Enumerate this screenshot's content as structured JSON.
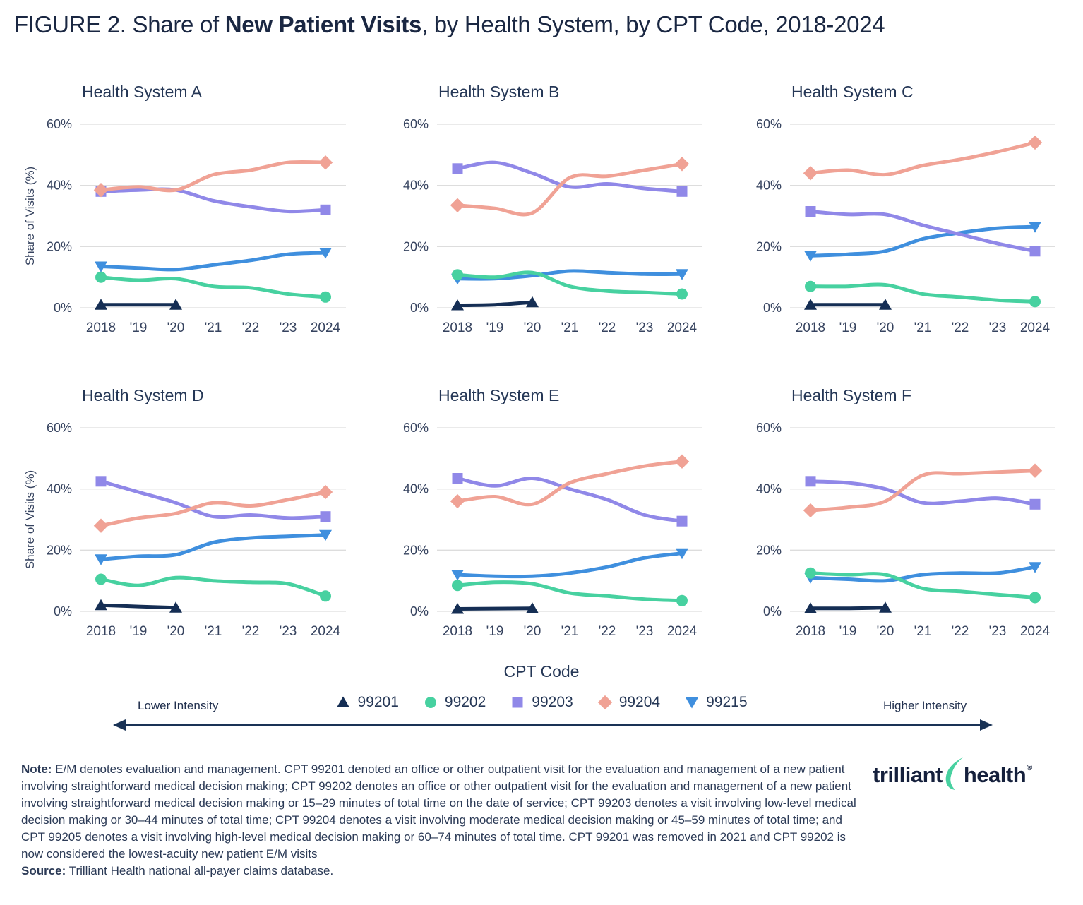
{
  "title": {
    "prefix": "FIGURE 2. Share of ",
    "bold": "New Patient Visits",
    "suffix": ", by Health System, by CPT Code, 2018-2024"
  },
  "colors": {
    "navy": "#152e54",
    "green": "#47d1a0",
    "purple": "#9088e8",
    "salmon": "#f0a295",
    "blue": "#3f8fde",
    "gridline": "#dddddd",
    "tick_text": "#36435f",
    "chart_title_text": "#253756"
  },
  "chart_data": {
    "type": "line",
    "x_years": [
      2018,
      2019,
      2020,
      2021,
      2022,
      2023,
      2024
    ],
    "x_tick_labels": [
      "2018",
      "'19",
      "'20",
      "'21",
      "'22",
      "'23",
      "2024"
    ],
    "y_tick_labels": [
      "60%",
      "40%",
      "20%",
      "0%"
    ],
    "ylim": [
      0,
      60
    ],
    "ylabel": "Share of Visits (%)",
    "grid": "horizontal-only",
    "legend_position": "bottom",
    "series_order": [
      "99201",
      "99215",
      "99202",
      "99203",
      "99204"
    ],
    "series_styles": {
      "99201": {
        "color_key": "navy",
        "marker": "triangle-up",
        "note": "only 2018-2020"
      },
      "99202": {
        "color_key": "green",
        "marker": "circle"
      },
      "99203": {
        "color_key": "purple",
        "marker": "square"
      },
      "99204": {
        "color_key": "salmon",
        "marker": "diamond"
      },
      "99215": {
        "color_key": "blue",
        "marker": "triangle-down"
      }
    },
    "charts": [
      {
        "title": "Health System A",
        "series": {
          "99201": [
            1,
            1,
            1
          ],
          "99202": [
            10,
            9,
            9.5,
            7,
            6.5,
            4.5,
            3.5
          ],
          "99203": [
            38,
            38.5,
            38.5,
            35,
            33,
            31.5,
            32
          ],
          "99204": [
            38.5,
            39.5,
            38.5,
            43.5,
            45,
            47.5,
            47.5
          ],
          "99215": [
            13.5,
            13,
            12.5,
            14,
            15.5,
            17.5,
            18
          ]
        }
      },
      {
        "title": "Health System B",
        "series": {
          "99201": [
            0.8,
            1,
            1.8
          ],
          "99202": [
            10.8,
            10,
            11.5,
            7,
            5.5,
            5,
            4.5
          ],
          "99203": [
            45.5,
            47.5,
            44,
            39.5,
            40.5,
            39,
            38
          ],
          "99204": [
            33.5,
            32.5,
            31,
            42.5,
            43,
            45,
            47
          ],
          "99215": [
            9.5,
            9.5,
            10.5,
            12,
            11.5,
            11,
            11
          ]
        }
      },
      {
        "title": "Health System C",
        "series": {
          "99201": [
            1,
            1,
            1
          ],
          "99202": [
            7,
            7,
            7.5,
            4.5,
            3.5,
            2.5,
            2
          ],
          "99203": [
            31.5,
            30.5,
            30.5,
            27,
            24,
            21,
            18.5
          ],
          "99204": [
            44,
            45,
            43.5,
            46.5,
            48.5,
            51,
            54
          ],
          "99215": [
            17,
            17.5,
            18.5,
            22.5,
            24.5,
            26,
            26.5
          ]
        }
      },
      {
        "title": "Health System D",
        "series": {
          "99201": [
            2,
            1.6,
            1.2
          ],
          "99202": [
            10.5,
            8.5,
            11,
            10,
            9.5,
            9,
            5
          ],
          "99203": [
            42.5,
            39,
            35.5,
            31,
            31.5,
            30.5,
            31
          ],
          "99204": [
            28,
            30.5,
            32,
            35.5,
            34.5,
            36.5,
            39
          ],
          "99215": [
            17,
            18,
            18.5,
            22.5,
            24,
            24.5,
            25
          ]
        }
      },
      {
        "title": "Health System E",
        "series": {
          "99201": [
            0.8,
            0.9,
            1
          ],
          "99202": [
            8.5,
            9.5,
            9,
            6,
            5,
            4,
            3.5
          ],
          "99203": [
            43.5,
            41,
            43.5,
            40,
            36.5,
            31.5,
            29.5
          ],
          "99204": [
            36,
            37.5,
            35,
            42,
            45,
            47.5,
            49
          ],
          "99215": [
            12,
            11.5,
            11.5,
            12.5,
            14.5,
            17.5,
            19
          ]
        }
      },
      {
        "title": "Health System F",
        "series": {
          "99201": [
            1,
            1,
            1.2
          ],
          "99202": [
            12.5,
            12,
            12,
            7.5,
            6.5,
            5.5,
            4.5
          ],
          "99203": [
            42.5,
            42,
            40,
            35.5,
            36,
            37,
            35
          ],
          "99204": [
            33,
            34,
            36,
            44.5,
            45,
            45.5,
            46
          ],
          "99215": [
            11,
            10.5,
            10,
            12,
            12.5,
            12.5,
            14.5
          ]
        }
      }
    ]
  },
  "legend": {
    "title": "CPT Code",
    "items": [
      {
        "label": "99201",
        "marker": "triangle-up",
        "color_key": "navy"
      },
      {
        "label": "99202",
        "marker": "circle",
        "color_key": "green"
      },
      {
        "label": "99203",
        "marker": "square",
        "color_key": "purple"
      },
      {
        "label": "99204",
        "marker": "diamond",
        "color_key": "salmon"
      },
      {
        "label": "99215",
        "marker": "triangle-down",
        "color_key": "blue"
      }
    ],
    "lower_label": "Lower Intensity",
    "higher_label": "Higher Intensity"
  },
  "note": {
    "label": "Note:",
    "text": " E/M denotes evaluation and management. CPT 99201 denoted an office or other outpatient visit for the evaluation and management of a new patient involving straightforward medical decision making; CPT 99202 denotes an office or other outpatient visit for the evaluation and management of a new patient involving straightforward medical decision making or 15–29 minutes of total time on the date of service; CPT 99203 denotes a visit involving low-level medical decision making or 30–44 minutes of total time; CPT 99204 denotes a visit involving moderate medical decision making or 45–59 minutes of total time; and CPT 99205 denotes a visit involving high-level medical decision making or 60–74 minutes of total time. CPT 99201 was removed in 2021 and CPT 99202 is now considered the lowest-acuity new patient E/M visits"
  },
  "source": {
    "label": "Source:",
    "text": " Trilliant Health national all-payer claims database."
  },
  "logo": {
    "word1": "trilliant",
    "word2": "health",
    "registered": "®"
  }
}
